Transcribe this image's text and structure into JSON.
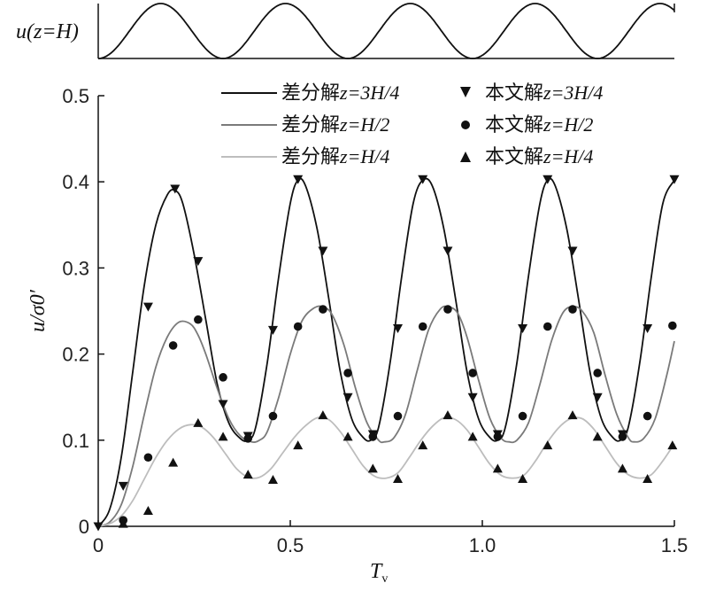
{
  "top_panel": {
    "ylabel": "u(z=H)",
    "period": 0.325,
    "xlim": [
      0,
      1.5
    ]
  },
  "chart_data": {
    "type": "line",
    "xlabel": "T",
    "xlabel_sub": "v",
    "ylabel": "u/σ0′",
    "xlim": [
      0,
      1.5
    ],
    "ylim": [
      0,
      0.5
    ],
    "xticks": [
      "0",
      "0.5",
      "1.0",
      "1.5"
    ],
    "yticks": [
      "0",
      "0.1",
      "0.2",
      "0.3",
      "0.4",
      "0.5"
    ],
    "legend_position": "top",
    "legend": {
      "line_prefix": "差分解",
      "marker_prefix": "本文解",
      "entries": [
        {
          "label_suffix": "z=3H/4",
          "line_color": "#111111",
          "marker": "triangle-down"
        },
        {
          "label_suffix": "z=H/2",
          "line_color": "#7a7a7a",
          "marker": "circle"
        },
        {
          "label_suffix": "z=H/4",
          "line_color": "#bdbdbd",
          "marker": "triangle-up"
        }
      ]
    },
    "series": [
      {
        "name": "差分解z=3H/4",
        "kind": "line",
        "color": "#111111",
        "x": [
          0,
          0.03,
          0.06,
          0.09,
          0.12,
          0.15,
          0.18,
          0.2,
          0.22,
          0.25,
          0.28,
          0.31,
          0.34,
          0.37,
          0.39,
          0.41,
          0.44,
          0.47,
          0.5,
          0.52,
          0.54,
          0.57,
          0.6,
          0.63,
          0.66,
          0.69,
          0.71,
          0.73,
          0.76,
          0.79,
          0.82,
          0.845,
          0.87,
          0.9,
          0.93,
          0.96,
          0.99,
          1.02,
          1.04,
          1.06,
          1.09,
          1.12,
          1.15,
          1.17,
          1.19,
          1.22,
          1.25,
          1.28,
          1.31,
          1.34,
          1.36,
          1.38,
          1.41,
          1.44,
          1.47,
          1.5
        ],
        "y": [
          0,
          0.02,
          0.08,
          0.18,
          0.28,
          0.35,
          0.385,
          0.39,
          0.375,
          0.315,
          0.24,
          0.165,
          0.12,
          0.102,
          0.1,
          0.115,
          0.19,
          0.29,
          0.375,
          0.402,
          0.395,
          0.345,
          0.265,
          0.18,
          0.125,
          0.103,
          0.1,
          0.115,
          0.19,
          0.29,
          0.375,
          0.402,
          0.395,
          0.345,
          0.265,
          0.18,
          0.125,
          0.103,
          0.1,
          0.115,
          0.19,
          0.29,
          0.375,
          0.402,
          0.395,
          0.345,
          0.265,
          0.18,
          0.125,
          0.103,
          0.1,
          0.115,
          0.19,
          0.29,
          0.375,
          0.402
        ]
      },
      {
        "name": "差分解z=H/2",
        "kind": "line",
        "color": "#7a7a7a",
        "x": [
          0,
          0.03,
          0.06,
          0.09,
          0.12,
          0.15,
          0.18,
          0.21,
          0.24,
          0.26,
          0.28,
          0.31,
          0.34,
          0.37,
          0.4,
          0.42,
          0.44,
          0.47,
          0.5,
          0.53,
          0.56,
          0.585,
          0.61,
          0.64,
          0.67,
          0.7,
          0.73,
          0.745,
          0.77,
          0.8,
          0.83,
          0.86,
          0.89,
          0.91,
          0.935,
          0.96,
          0.99,
          1.02,
          1.05,
          1.07,
          1.09,
          1.12,
          1.15,
          1.18,
          1.21,
          1.235,
          1.26,
          1.29,
          1.32,
          1.35,
          1.38,
          1.395,
          1.42,
          1.45,
          1.48,
          1.5
        ],
        "y": [
          0,
          0.005,
          0.025,
          0.07,
          0.13,
          0.185,
          0.22,
          0.237,
          0.235,
          0.222,
          0.2,
          0.16,
          0.125,
          0.105,
          0.098,
          0.1,
          0.11,
          0.15,
          0.2,
          0.238,
          0.253,
          0.255,
          0.245,
          0.21,
          0.16,
          0.12,
          0.1,
          0.098,
          0.103,
          0.13,
          0.18,
          0.228,
          0.252,
          0.255,
          0.248,
          0.22,
          0.17,
          0.125,
          0.102,
          0.098,
          0.1,
          0.12,
          0.165,
          0.215,
          0.248,
          0.255,
          0.25,
          0.225,
          0.175,
          0.13,
          0.103,
          0.098,
          0.102,
          0.125,
          0.175,
          0.215
        ]
      },
      {
        "name": "差分解z=H/4",
        "kind": "line",
        "color": "#bdbdbd",
        "x": [
          0,
          0.03,
          0.06,
          0.09,
          0.12,
          0.15,
          0.18,
          0.21,
          0.24,
          0.27,
          0.3,
          0.33,
          0.36,
          0.39,
          0.42,
          0.45,
          0.48,
          0.51,
          0.54,
          0.57,
          0.6,
          0.63,
          0.66,
          0.69,
          0.72,
          0.75,
          0.78,
          0.81,
          0.84,
          0.87,
          0.9,
          0.93,
          0.96,
          0.99,
          1.02,
          1.05,
          1.08,
          1.11,
          1.14,
          1.17,
          1.2,
          1.23,
          1.26,
          1.29,
          1.32,
          1.35,
          1.38,
          1.41,
          1.44,
          1.47,
          1.5
        ],
        "y": [
          0,
          0.003,
          0.012,
          0.03,
          0.055,
          0.08,
          0.1,
          0.113,
          0.118,
          0.115,
          0.103,
          0.085,
          0.067,
          0.057,
          0.057,
          0.067,
          0.085,
          0.103,
          0.117,
          0.126,
          0.124,
          0.11,
          0.09,
          0.07,
          0.058,
          0.056,
          0.062,
          0.08,
          0.1,
          0.116,
          0.126,
          0.124,
          0.112,
          0.092,
          0.072,
          0.059,
          0.056,
          0.06,
          0.077,
          0.098,
          0.115,
          0.125,
          0.125,
          0.113,
          0.093,
          0.073,
          0.06,
          0.056,
          0.06,
          0.076,
          0.096
        ]
      },
      {
        "name": "本文解z=3H/4",
        "kind": "marker",
        "marker": "triangle-down",
        "x": [
          0,
          0.065,
          0.13,
          0.2,
          0.26,
          0.325,
          0.39,
          0.455,
          0.52,
          0.585,
          0.65,
          0.715,
          0.78,
          0.845,
          0.91,
          0.975,
          1.04,
          1.105,
          1.17,
          1.235,
          1.3,
          1.365,
          1.43,
          1.5
        ],
        "y": [
          0,
          0.047,
          0.255,
          0.392,
          0.308,
          0.142,
          0.105,
          0.228,
          0.403,
          0.32,
          0.15,
          0.107,
          0.23,
          0.403,
          0.32,
          0.15,
          0.107,
          0.23,
          0.403,
          0.32,
          0.15,
          0.107,
          0.23,
          0.403
        ]
      },
      {
        "name": "本文解z=H/2",
        "kind": "marker",
        "marker": "circle",
        "x": [
          0.065,
          0.13,
          0.195,
          0.26,
          0.325,
          0.39,
          0.455,
          0.52,
          0.585,
          0.65,
          0.715,
          0.78,
          0.845,
          0.91,
          0.975,
          1.04,
          1.105,
          1.17,
          1.235,
          1.3,
          1.365,
          1.43,
          1.495
        ],
        "y": [
          0.007,
          0.08,
          0.21,
          0.24,
          0.173,
          0.102,
          0.128,
          0.232,
          0.252,
          0.178,
          0.104,
          0.128,
          0.232,
          0.252,
          0.178,
          0.104,
          0.128,
          0.232,
          0.252,
          0.178,
          0.104,
          0.128,
          0.233
        ]
      },
      {
        "name": "本文解z=H/4",
        "kind": "marker",
        "marker": "triangle-up",
        "x": [
          0.065,
          0.13,
          0.195,
          0.26,
          0.325,
          0.39,
          0.455,
          0.52,
          0.585,
          0.65,
          0.715,
          0.78,
          0.845,
          0.91,
          0.975,
          1.04,
          1.105,
          1.17,
          1.235,
          1.3,
          1.365,
          1.43,
          1.495
        ],
        "y": [
          0.003,
          0.018,
          0.074,
          0.12,
          0.104,
          0.06,
          0.054,
          0.094,
          0.129,
          0.104,
          0.067,
          0.055,
          0.094,
          0.129,
          0.104,
          0.067,
          0.055,
          0.094,
          0.129,
          0.104,
          0.067,
          0.055,
          0.094
        ]
      }
    ]
  }
}
